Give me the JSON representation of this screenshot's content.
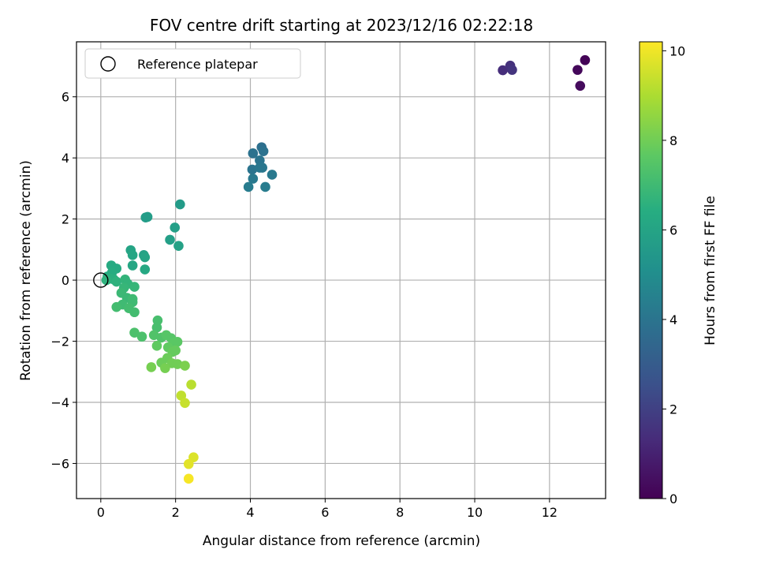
{
  "chart_data": {
    "type": "scatter",
    "title": "FOV centre drift starting at 2023/12/16 02:22:18",
    "xlabel": "Angular distance from reference (arcmin)",
    "ylabel": "Rotation from reference (arcmin)",
    "xlim": [
      -0.65,
      13.5
    ],
    "ylim": [
      -7.15,
      7.8
    ],
    "xticks": [
      0,
      2,
      4,
      6,
      8,
      10,
      12
    ],
    "yticks": [
      -6,
      -4,
      -2,
      0,
      2,
      4,
      6
    ],
    "grid": true,
    "legend": {
      "placement": "top-left",
      "entries": [
        "Reference platepar"
      ]
    },
    "reference_point": {
      "x": 0,
      "y": 0,
      "marker": "open-circle"
    },
    "colorbar": {
      "label": "Hours from first FF file",
      "range": [
        0,
        10.2
      ],
      "ticks": [
        0,
        2,
        4,
        6,
        8,
        10
      ],
      "colormap": "viridis"
    },
    "points": [
      {
        "x": 12.95,
        "y": 7.2,
        "c": 0.1
      },
      {
        "x": 12.75,
        "y": 6.88,
        "c": 0.2
      },
      {
        "x": 12.82,
        "y": 6.36,
        "c": 0.3
      },
      {
        "x": 10.75,
        "y": 6.87,
        "c": 1.4
      },
      {
        "x": 10.95,
        "y": 7.02,
        "c": 1.5
      },
      {
        "x": 11.0,
        "y": 6.88,
        "c": 1.6
      },
      {
        "x": 4.3,
        "y": 4.35,
        "c": 3.8
      },
      {
        "x": 4.07,
        "y": 4.15,
        "c": 3.9
      },
      {
        "x": 4.35,
        "y": 4.22,
        "c": 3.9
      },
      {
        "x": 4.25,
        "y": 3.92,
        "c": 4.0
      },
      {
        "x": 4.05,
        "y": 3.62,
        "c": 4.0
      },
      {
        "x": 4.25,
        "y": 3.68,
        "c": 4.1
      },
      {
        "x": 4.32,
        "y": 3.68,
        "c": 4.1
      },
      {
        "x": 4.58,
        "y": 3.45,
        "c": 4.2
      },
      {
        "x": 4.07,
        "y": 3.32,
        "c": 4.2
      },
      {
        "x": 3.95,
        "y": 3.05,
        "c": 4.3
      },
      {
        "x": 4.4,
        "y": 3.05,
        "c": 4.3
      },
      {
        "x": 2.12,
        "y": 2.48,
        "c": 5.6
      },
      {
        "x": 1.25,
        "y": 2.07,
        "c": 5.7
      },
      {
        "x": 1.2,
        "y": 2.05,
        "c": 5.7
      },
      {
        "x": 1.98,
        "y": 1.72,
        "c": 5.8
      },
      {
        "x": 1.85,
        "y": 1.32,
        "c": 5.8
      },
      {
        "x": 2.08,
        "y": 1.12,
        "c": 5.9
      },
      {
        "x": 1.15,
        "y": 0.82,
        "c": 5.9
      },
      {
        "x": 1.18,
        "y": 0.75,
        "c": 6.0
      },
      {
        "x": 0.8,
        "y": 0.98,
        "c": 6.0
      },
      {
        "x": 0.85,
        "y": 0.82,
        "c": 6.1
      },
      {
        "x": 0.85,
        "y": 0.48,
        "c": 6.1
      },
      {
        "x": 1.18,
        "y": 0.35,
        "c": 6.2
      },
      {
        "x": 0.28,
        "y": 0.48,
        "c": 6.3
      },
      {
        "x": 0.42,
        "y": 0.38,
        "c": 6.3
      },
      {
        "x": 0.3,
        "y": 0.25,
        "c": 6.4
      },
      {
        "x": 0.18,
        "y": 0.12,
        "c": 6.4
      },
      {
        "x": 0.25,
        "y": 0.05,
        "c": 6.5
      },
      {
        "x": 0.35,
        "y": 0.02,
        "c": 6.5
      },
      {
        "x": 0.15,
        "y": 0.0,
        "c": 6.6
      },
      {
        "x": 0.42,
        "y": -0.05,
        "c": 6.6
      },
      {
        "x": 0.65,
        "y": 0.02,
        "c": 6.7
      },
      {
        "x": 0.72,
        "y": -0.12,
        "c": 6.7
      },
      {
        "x": 0.62,
        "y": -0.25,
        "c": 6.8
      },
      {
        "x": 0.9,
        "y": -0.22,
        "c": 6.8
      },
      {
        "x": 0.55,
        "y": -0.42,
        "c": 6.9
      },
      {
        "x": 0.7,
        "y": -0.58,
        "c": 6.9
      },
      {
        "x": 0.85,
        "y": -0.62,
        "c": 7.0
      },
      {
        "x": 0.85,
        "y": -0.72,
        "c": 7.0
      },
      {
        "x": 0.58,
        "y": -0.8,
        "c": 7.0
      },
      {
        "x": 0.42,
        "y": -0.88,
        "c": 7.1
      },
      {
        "x": 0.75,
        "y": -0.92,
        "c": 7.1
      },
      {
        "x": 0.9,
        "y": -1.05,
        "c": 7.1
      },
      {
        "x": 1.52,
        "y": -1.32,
        "c": 7.2
      },
      {
        "x": 1.5,
        "y": -1.55,
        "c": 7.2
      },
      {
        "x": 0.9,
        "y": -1.72,
        "c": 7.3
      },
      {
        "x": 1.1,
        "y": -1.85,
        "c": 7.3
      },
      {
        "x": 1.42,
        "y": -1.8,
        "c": 7.4
      },
      {
        "x": 1.62,
        "y": -1.88,
        "c": 7.4
      },
      {
        "x": 1.75,
        "y": -1.8,
        "c": 7.5
      },
      {
        "x": 1.88,
        "y": -1.9,
        "c": 7.5
      },
      {
        "x": 1.95,
        "y": -2.05,
        "c": 7.6
      },
      {
        "x": 2.05,
        "y": -2.02,
        "c": 7.6
      },
      {
        "x": 1.5,
        "y": -2.15,
        "c": 7.7
      },
      {
        "x": 1.8,
        "y": -2.2,
        "c": 7.7
      },
      {
        "x": 1.92,
        "y": -2.35,
        "c": 7.8
      },
      {
        "x": 2.0,
        "y": -2.3,
        "c": 7.8
      },
      {
        "x": 1.78,
        "y": -2.55,
        "c": 7.9
      },
      {
        "x": 1.62,
        "y": -2.7,
        "c": 7.9
      },
      {
        "x": 1.9,
        "y": -2.72,
        "c": 8.0
      },
      {
        "x": 2.05,
        "y": -2.75,
        "c": 8.0
      },
      {
        "x": 1.35,
        "y": -2.85,
        "c": 8.1
      },
      {
        "x": 1.72,
        "y": -2.88,
        "c": 8.1
      },
      {
        "x": 2.25,
        "y": -2.8,
        "c": 8.2
      },
      {
        "x": 2.42,
        "y": -3.42,
        "c": 9.2
      },
      {
        "x": 2.15,
        "y": -3.78,
        "c": 9.3
      },
      {
        "x": 2.25,
        "y": -4.02,
        "c": 9.4
      },
      {
        "x": 2.48,
        "y": -5.8,
        "c": 9.7
      },
      {
        "x": 2.35,
        "y": -6.02,
        "c": 9.8
      },
      {
        "x": 2.35,
        "y": -6.5,
        "c": 10.1
      }
    ]
  }
}
